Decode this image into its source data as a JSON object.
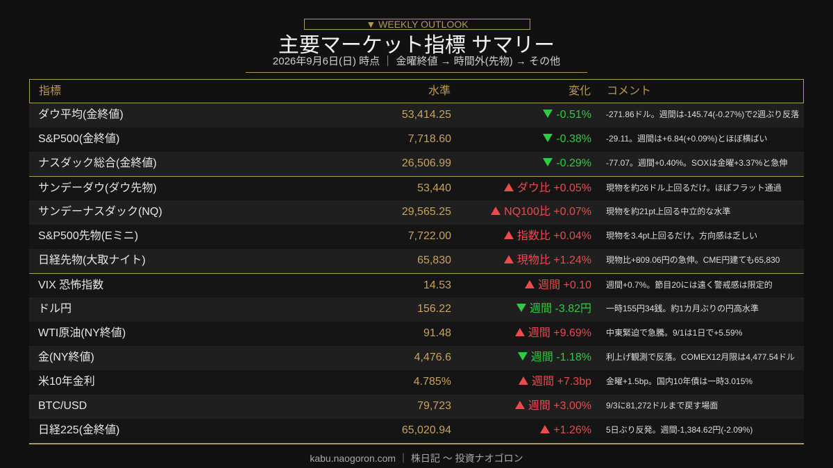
{
  "header": {
    "badge": "▼ WEEKLY OUTLOOK",
    "title": "主要マーケット指標 サマリー",
    "subtitle": "2026年9月6日(日) 時点 ｜ 金曜終値 → 時間外(先物) → その他"
  },
  "table": {
    "columns": [
      "指標",
      "水準",
      "変化",
      "コメント"
    ],
    "trend_colors": {
      "up": "#e84c4c",
      "down": "#2ecc40"
    },
    "groups": [
      {
        "rows": [
          {
            "name": "ダウ平均(金終値)",
            "level": "53,414.25",
            "trend": "down",
            "change": "-0.51%",
            "comment": "-271.86ドル。週間は-145.74(-0.27%)で2週ぶり反落"
          },
          {
            "name": "S&P500(金終値)",
            "level": "7,718.60",
            "trend": "down",
            "change": "-0.38%",
            "comment": "-29.11。週間は+6.84(+0.09%)とほぼ横ばい"
          },
          {
            "name": "ナスダック総合(金終値)",
            "level": "26,506.99",
            "trend": "down",
            "change": "-0.29%",
            "comment": "-77.07。週間+0.40%。SOXは金曜+3.37%と急伸"
          }
        ]
      },
      {
        "rows": [
          {
            "name": "サンデーダウ(ダウ先物)",
            "level": "53,440",
            "trend": "up",
            "change": "ダウ比 +0.05%",
            "comment": "現物を約26ドル上回るだけ。ほぼフラット通過"
          },
          {
            "name": "サンデーナスダック(NQ)",
            "level": "29,565.25",
            "trend": "up",
            "change": "NQ100比 +0.07%",
            "comment": "現物を約21pt上回る中立的な水準"
          },
          {
            "name": "S&P500先物(Eミニ)",
            "level": "7,722.00",
            "trend": "up",
            "change": "指数比 +0.04%",
            "comment": "現物を3.4pt上回るだけ。方向感は乏しい"
          },
          {
            "name": "日経先物(大取ナイト)",
            "level": "65,830",
            "trend": "up",
            "change": "現物比 +1.24%",
            "comment": "現物比+809.06円の急伸。CME円建ても65,830"
          }
        ]
      },
      {
        "rows": [
          {
            "name": "VIX 恐怖指数",
            "level": "14.53",
            "trend": "up",
            "change": "週間 +0.10",
            "comment": "週間+0.7%。節目20には遠く警戒感は限定的"
          },
          {
            "name": "ドル円",
            "level": "156.22",
            "trend": "down",
            "change": "週間 -3.82円",
            "comment": "一時155円34銭。約1カ月ぶりの円高水準"
          },
          {
            "name": "WTI原油(NY終値)",
            "level": "91.48",
            "trend": "up",
            "change": "週間 +9.69%",
            "comment": "中東緊迫で急騰。9/1は1日で+5.59%"
          },
          {
            "name": "金(NY終値)",
            "level": "4,476.6",
            "trend": "down",
            "change": "週間 -1.18%",
            "comment": "利上げ観測で反落。COMEX12月限は4,477.54ドル"
          },
          {
            "name": "米10年金利",
            "level": "4.785%",
            "trend": "up",
            "change": "週間 +7.3bp",
            "comment": "金曜+1.5bp。国内10年債は一時3.015%"
          },
          {
            "name": "BTC/USD",
            "level": "79,723",
            "trend": "up",
            "change": "週間 +3.00%",
            "comment": "9/3に81,272ドルまで戻す場面"
          },
          {
            "name": "日経225(金終値)",
            "level": "65,020.94",
            "trend": "up",
            "change": "+1.26%",
            "comment": "5日ぶり反発。週間-1,384.62円(-2.09%)"
          }
        ]
      }
    ]
  },
  "footer": "kabu.naogoron.com ｜ 株日記 〜 投資ナオゴロン"
}
